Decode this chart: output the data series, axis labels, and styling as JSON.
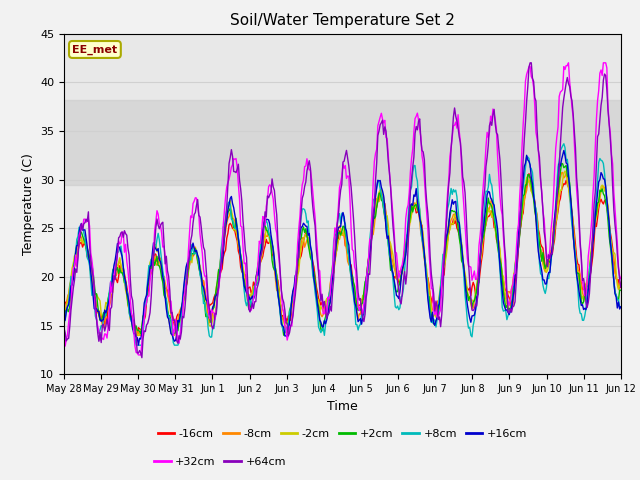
{
  "title": "Soil/Water Temperature Set 2",
  "xlabel": "Time",
  "ylabel": "Temperature (C)",
  "ylim": [
    10,
    45
  ],
  "annotation_text": "EE_met",
  "annotation_bg": "#ffffcc",
  "annotation_border": "#aaaa00",
  "annotation_text_color": "#8b0000",
  "series_labels": [
    "-16cm",
    "-8cm",
    "-2cm",
    "+2cm",
    "+8cm",
    "+16cm",
    "+32cm",
    "+64cm"
  ],
  "series_colors": [
    "#ff0000",
    "#ff8800",
    "#cccc00",
    "#00bb00",
    "#00bbbb",
    "#0000cc",
    "#ff00ff",
    "#8800bb"
  ],
  "tick_labels": [
    "May 28",
    "May 29",
    "May 30",
    "May 31",
    "Jun 1",
    "Jun 2",
    "Jun 3",
    "Jun 4",
    "Jun 5",
    "Jun 6",
    "Jun 7",
    "Jun 8",
    "Jun 9",
    "Jun 10",
    "Jun 11",
    "Jun 12"
  ],
  "n_points": 480,
  "background_gray_band": [
    29.5,
    38.2
  ],
  "grid_color": "#d0d0d0",
  "plot_bg": "#e8e8e8",
  "fig_bg": "#f2f2f2"
}
